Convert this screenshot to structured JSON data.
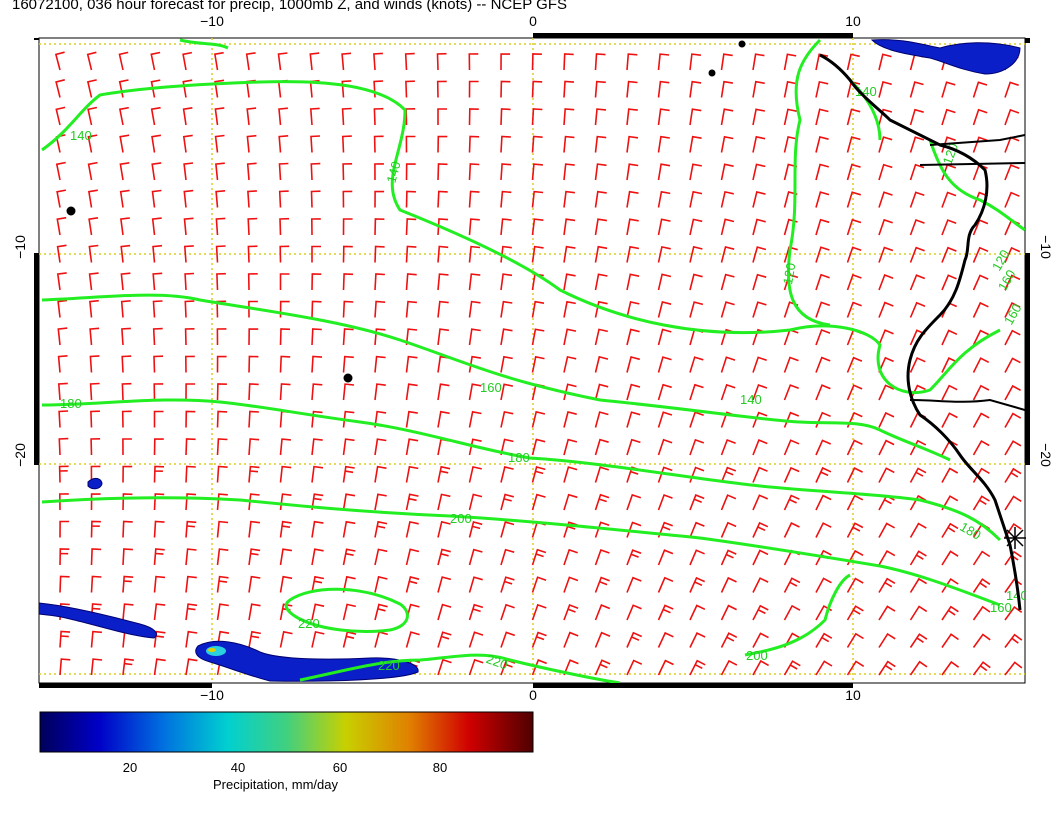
{
  "title": "16072100, 036 hour forecast for precip, 1000mb Z, and winds (knots) -- NCEP GFS",
  "axes": {
    "x_ticks": [
      "−10",
      "0",
      "10"
    ],
    "y_ticks": [
      "−10",
      "−20"
    ]
  },
  "contour_labels": [
    "140",
    "140",
    "120",
    "140",
    "160",
    "180",
    "180",
    "200",
    "220",
    "220",
    "220",
    "200",
    "180",
    "160",
    "140",
    "120",
    "120",
    "160",
    "160",
    "140"
  ],
  "colorbar": {
    "ticks": [
      "20",
      "40",
      "60",
      "80"
    ],
    "label": "Precipitation, mm/day",
    "range": [
      5,
      95
    ]
  },
  "colors": {
    "contour": "#22ee22",
    "wind_barb": "#ee1111",
    "grid": "#ddcc22",
    "coast": "#000000"
  },
  "wind_barbs": "knots"
}
